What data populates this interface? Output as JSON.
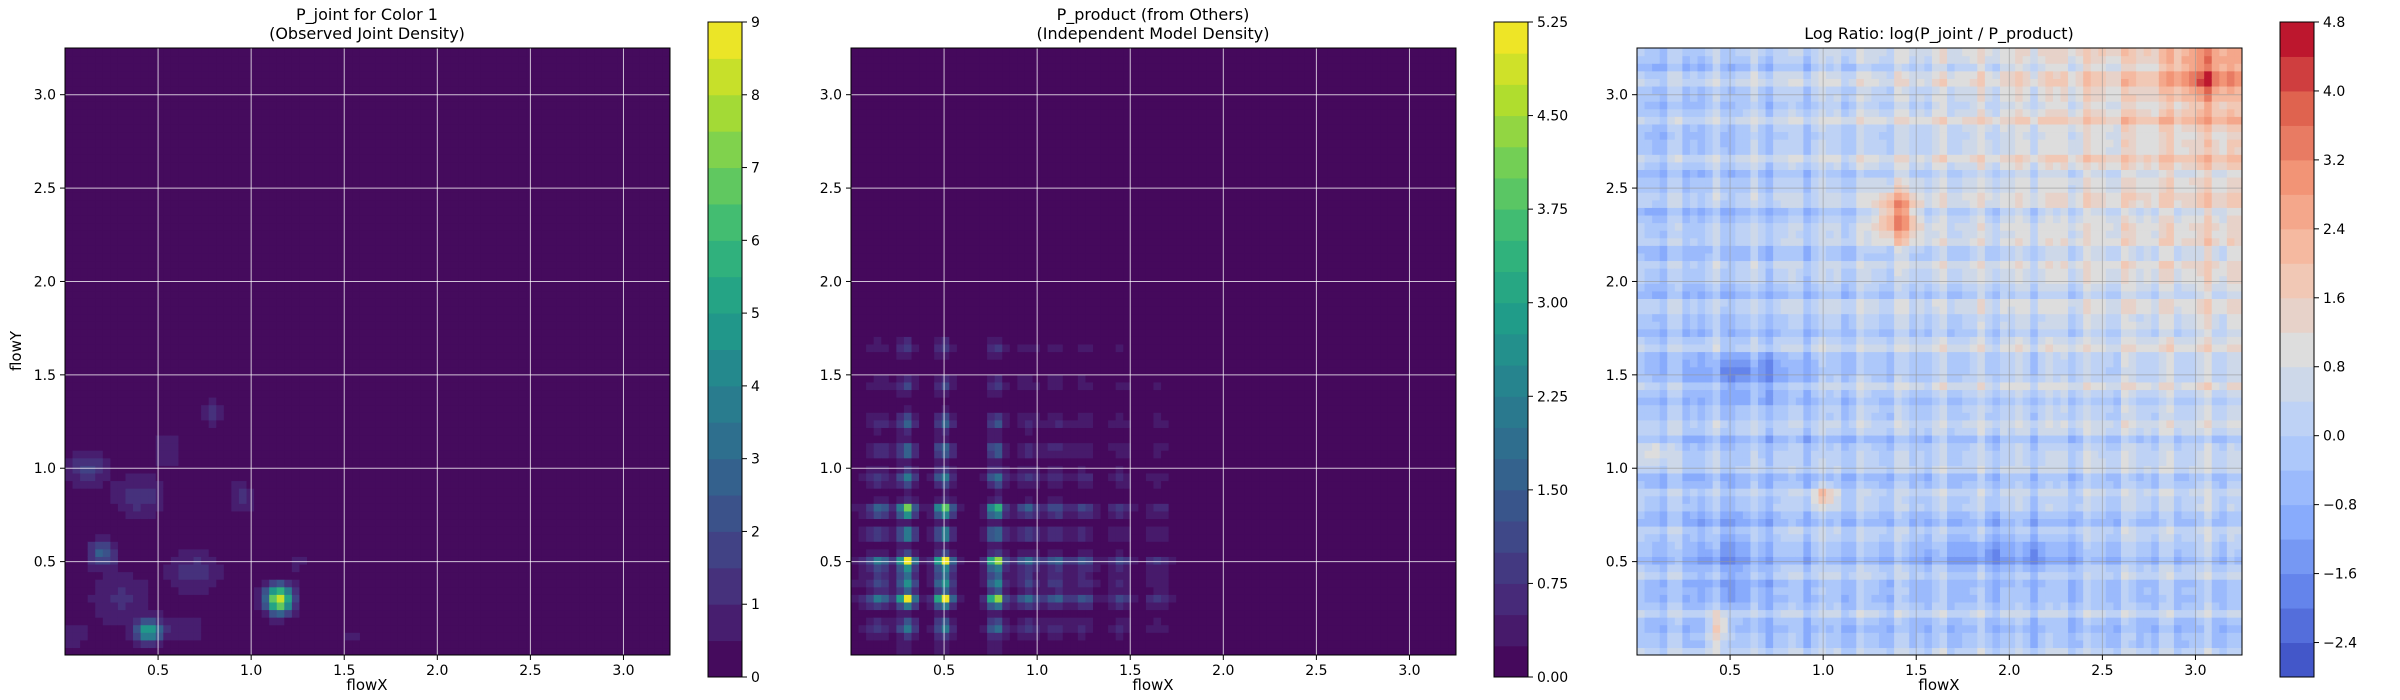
{
  "chart_data": [
    {
      "type": "heatmap",
      "title_line1": "P_joint for Color 1",
      "title_line2": "(Observed Joint Density)",
      "xlabel": "flowX",
      "ylabel": "flowY",
      "xlim": [
        0.0,
        3.25
      ],
      "ylim": [
        0.0,
        3.25
      ],
      "x_ticks": [
        "0.5",
        "1.0",
        "1.5",
        "2.0",
        "2.5",
        "3.0"
      ],
      "y_ticks": [
        "0.5",
        "1.0",
        "1.5",
        "2.0",
        "2.5",
        "3.0"
      ],
      "grid": true,
      "colormap": "viridis",
      "colorbar": {
        "min": 0,
        "max": 9,
        "ticks": [
          "0",
          "1",
          "2",
          "3",
          "4",
          "5",
          "6",
          "7",
          "8",
          "9"
        ]
      },
      "background_value": 0.1,
      "features": [
        {
          "kind": "blob",
          "x": 1.15,
          "y": 0.3,
          "sx": 0.05,
          "sy": 0.05,
          "value": 8.5
        },
        {
          "kind": "blob",
          "x": 0.45,
          "y": 0.13,
          "sx": 0.05,
          "sy": 0.04,
          "value": 5.0
        },
        {
          "kind": "blob",
          "x": 0.2,
          "y": 0.55,
          "sx": 0.05,
          "sy": 0.05,
          "value": 2.6
        },
        {
          "kind": "blob",
          "x": 0.12,
          "y": 1.0,
          "sx": 0.07,
          "sy": 0.06,
          "value": 1.6
        },
        {
          "kind": "blob",
          "x": 0.4,
          "y": 0.85,
          "sx": 0.1,
          "sy": 0.08,
          "value": 1.2
        },
        {
          "kind": "blob",
          "x": 0.7,
          "y": 0.45,
          "sx": 0.1,
          "sy": 0.08,
          "value": 1.2
        },
        {
          "kind": "blob",
          "x": 0.3,
          "y": 0.3,
          "sx": 0.12,
          "sy": 0.1,
          "value": 1.0
        },
        {
          "kind": "blob",
          "x": 0.8,
          "y": 1.3,
          "sx": 0.05,
          "sy": 0.05,
          "value": 1.0
        },
        {
          "kind": "blob",
          "x": 0.95,
          "y": 0.85,
          "sx": 0.05,
          "sy": 0.06,
          "value": 1.0
        },
        {
          "kind": "blob",
          "x": 0.55,
          "y": 1.1,
          "sx": 0.06,
          "sy": 0.06,
          "value": 0.9
        },
        {
          "kind": "blob",
          "x": 0.65,
          "y": 0.15,
          "sx": 0.08,
          "sy": 0.05,
          "value": 0.9
        },
        {
          "kind": "blob",
          "x": 0.05,
          "y": 0.1,
          "sx": 0.05,
          "sy": 0.06,
          "value": 0.8
        },
        {
          "kind": "blob",
          "x": 1.25,
          "y": 0.5,
          "sx": 0.04,
          "sy": 0.04,
          "value": 0.7
        },
        {
          "kind": "blob",
          "x": 1.55,
          "y": 0.1,
          "sx": 0.04,
          "sy": 0.03,
          "value": 0.6
        }
      ]
    },
    {
      "type": "heatmap",
      "title_line1": "P_product (from Others)",
      "title_line2": "(Independent Model Density)",
      "xlabel": "flowX",
      "ylabel": "",
      "xlim": [
        0.0,
        3.25
      ],
      "ylim": [
        0.0,
        3.25
      ],
      "x_ticks": [
        "0.5",
        "1.0",
        "1.5",
        "2.0",
        "2.5",
        "3.0"
      ],
      "y_ticks": [
        "0.5",
        "1.0",
        "1.5",
        "2.0",
        "2.5",
        "3.0"
      ],
      "grid": true,
      "colormap": "viridis",
      "colorbar": {
        "min": 0,
        "max": 5.25,
        "ticks": [
          "0.00",
          "0.75",
          "1.50",
          "2.25",
          "3.00",
          "3.75",
          "4.50",
          "5.25"
        ]
      },
      "background_value": 0.1,
      "marginal_x_peaks": [
        {
          "center": 0.3,
          "width": 0.03,
          "height": 1.0
        },
        {
          "center": 0.5,
          "width": 0.03,
          "height": 1.0
        },
        {
          "center": 0.78,
          "width": 0.03,
          "height": 0.9
        },
        {
          "center": 0.15,
          "width": 0.04,
          "height": 0.35
        },
        {
          "center": 0.95,
          "width": 0.04,
          "height": 0.35
        },
        {
          "center": 1.1,
          "width": 0.04,
          "height": 0.3
        },
        {
          "center": 1.25,
          "width": 0.04,
          "height": 0.25
        },
        {
          "center": 1.45,
          "width": 0.04,
          "height": 0.2
        },
        {
          "center": 1.65,
          "width": 0.04,
          "height": 0.15
        }
      ],
      "marginal_y_peaks": [
        {
          "center": 0.3,
          "width": 0.025,
          "height": 1.0
        },
        {
          "center": 0.5,
          "width": 0.025,
          "height": 1.0
        },
        {
          "center": 0.4,
          "width": 0.025,
          "height": 0.55
        },
        {
          "center": 0.65,
          "width": 0.025,
          "height": 0.5
        },
        {
          "center": 0.78,
          "width": 0.025,
          "height": 0.85
        },
        {
          "center": 0.15,
          "width": 0.03,
          "height": 0.35
        },
        {
          "center": 0.95,
          "width": 0.03,
          "height": 0.4
        },
        {
          "center": 1.1,
          "width": 0.03,
          "height": 0.35
        },
        {
          "center": 1.25,
          "width": 0.03,
          "height": 0.3
        },
        {
          "center": 1.45,
          "width": 0.03,
          "height": 0.2
        },
        {
          "center": 1.65,
          "width": 0.03,
          "height": 0.15
        }
      ],
      "product_scale": 5.0
    },
    {
      "type": "heatmap",
      "title_line1": "Log Ratio: log(P_joint / P_product)",
      "title_line2": "",
      "xlabel": "flowX",
      "ylabel": "",
      "xlim": [
        0.0,
        3.25
      ],
      "ylim": [
        0.0,
        3.25
      ],
      "x_ticks": [
        "0.5",
        "1.0",
        "1.5",
        "2.0",
        "2.5",
        "3.0"
      ],
      "y_ticks": [
        "0.5",
        "1.0",
        "1.5",
        "2.0",
        "2.5",
        "3.0"
      ],
      "grid": true,
      "colormap": "coolwarm",
      "colorbar": {
        "min": -2.8,
        "max": 4.8,
        "ticks": [
          "−2.4",
          "−1.6",
          "−0.8",
          "0.0",
          "0.8",
          "1.6",
          "2.4",
          "3.2",
          "4.0",
          "4.8"
        ]
      },
      "gradient_towards_top_right": 2.4,
      "features": [
        {
          "kind": "blob",
          "x": 1.4,
          "y": 2.35,
          "sx": 0.08,
          "sy": 0.1,
          "value": 2.8
        },
        {
          "kind": "blob",
          "x": 3.05,
          "y": 3.1,
          "sx": 0.12,
          "sy": 0.1,
          "value": 1.8
        },
        {
          "kind": "blob",
          "x": 0.45,
          "y": 0.15,
          "sx": 0.05,
          "sy": 0.06,
          "value": 2.0
        },
        {
          "kind": "blob",
          "x": 1.0,
          "y": 0.85,
          "sx": 0.05,
          "sy": 0.04,
          "value": 1.8
        },
        {
          "kind": "blob",
          "x": 0.1,
          "y": 1.1,
          "sx": 0.06,
          "sy": 0.05,
          "value": 1.4
        },
        {
          "kind": "blob",
          "x": 0.6,
          "y": 1.5,
          "sx": 0.2,
          "sy": 0.08,
          "value": -1.4
        },
        {
          "kind": "blob",
          "x": 2.0,
          "y": 0.55,
          "sx": 0.3,
          "sy": 0.1,
          "value": -1.0
        },
        {
          "kind": "blob",
          "x": 0.5,
          "y": 0.5,
          "sx": 0.15,
          "sy": 0.2,
          "value": -0.9
        }
      ]
    }
  ]
}
